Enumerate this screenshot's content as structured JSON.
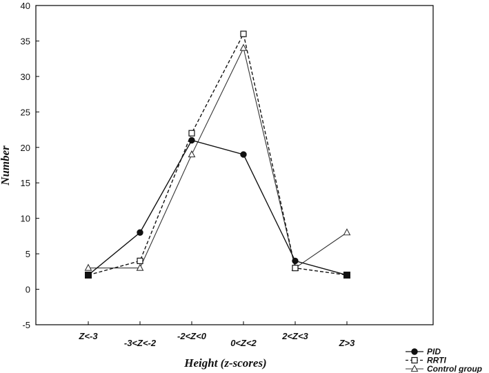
{
  "chart_data": {
    "type": "line",
    "xlabel": "Height (z-scores)",
    "ylabel": "Number",
    "ylim": [
      -5,
      40
    ],
    "yticks": [
      -5,
      0,
      5,
      10,
      15,
      20,
      25,
      30,
      35,
      40
    ],
    "categories": [
      "Z<-3",
      "-3<Z<-2",
      "-2<Z<0",
      "0<Z<2",
      "2<Z<3",
      "Z>3"
    ],
    "grid": false,
    "legend_position": "bottom-right",
    "series": [
      {
        "name": "PID",
        "values": [
          2,
          8,
          21,
          19,
          4,
          2
        ],
        "marker": "circle-filled",
        "line": "solid",
        "color": "#111111"
      },
      {
        "name": "RRTI",
        "values": [
          2,
          4,
          22,
          36,
          3,
          2
        ],
        "marker": "square-open",
        "line": "dashed",
        "color": "#111111"
      },
      {
        "name": "Control group",
        "values": [
          3,
          3,
          19,
          34,
          3,
          8
        ],
        "marker": "triangle-open",
        "line": "solid-thin",
        "color": "#333333"
      }
    ]
  }
}
